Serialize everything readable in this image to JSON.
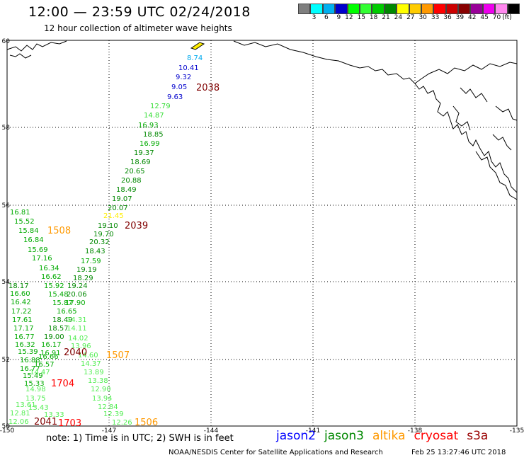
{
  "header": {
    "title": "12:00 — 23:59 UTC 02/24/2018",
    "subtitle": "12 hour collection of altimeter wave heights"
  },
  "legend": {
    "unit": "(ft)",
    "colors": [
      "#7f7f7f",
      "#00ffff",
      "#00b0f0",
      "#0000cd",
      "#00ffff00",
      "#33ff33",
      "#00cc00",
      "#008800",
      "#ffff00",
      "#ffcc00",
      "#ff9900",
      "#ff0000",
      "#cc0000",
      "#880000",
      "#990099",
      "#ee00ee",
      "#ff88ee",
      "#000000"
    ],
    "labels": [
      "3",
      "6",
      "9",
      "12",
      "15",
      "18",
      "21",
      "24",
      "27",
      "30",
      "33",
      "36",
      "39",
      "42",
      "45",
      "70"
    ]
  },
  "axes": {
    "lat_labels": [
      "60",
      "58",
      "56",
      "54",
      "52",
      "50"
    ],
    "lon_labels": [
      "-150",
      "-147",
      "-144",
      "-141",
      "-138",
      "-135"
    ]
  },
  "track_labels": [
    {
      "text": "2038",
      "color": "#800000"
    },
    {
      "text": "2039",
      "color": "#800000"
    },
    {
      "text": "2040",
      "color": "#800000"
    },
    {
      "text": "2041",
      "color": "#800000"
    },
    {
      "text": "1508",
      "color": "#ff9900"
    },
    {
      "text": "1507",
      "color": "#ff9900"
    },
    {
      "text": "1506",
      "color": "#ff9900"
    },
    {
      "text": "1704",
      "color": "#ff0000"
    },
    {
      "text": "1703",
      "color": "#ff0000"
    }
  ],
  "observations": [
    {
      "text": "8.74",
      "color": "#00aaee"
    },
    {
      "text": "10.41",
      "color": "#0000cc"
    },
    {
      "text": "9.32",
      "color": "#0000cc"
    },
    {
      "text": "9.05",
      "color": "#0000cc"
    },
    {
      "text": "9.63",
      "color": "#0000cc"
    },
    {
      "text": "12.79",
      "color": "#33dd33"
    },
    {
      "text": "14.87",
      "color": "#33dd33"
    },
    {
      "text": "16.93",
      "color": "#00aa00"
    },
    {
      "text": "18.85",
      "color": "#008800"
    },
    {
      "text": "16.99",
      "color": "#00aa00"
    },
    {
      "text": "19.37",
      "color": "#008800"
    },
    {
      "text": "18.69",
      "color": "#008800"
    },
    {
      "text": "20.65",
      "color": "#008800"
    },
    {
      "text": "20.88",
      "color": "#008800"
    },
    {
      "text": "18.49",
      "color": "#008800"
    },
    {
      "text": "19.07",
      "color": "#008800"
    },
    {
      "text": "20.07",
      "color": "#008800"
    },
    {
      "text": "21.45",
      "color": "#ffee00"
    },
    {
      "text": "19.10",
      "color": "#008800"
    },
    {
      "text": "19.70",
      "color": "#008800"
    },
    {
      "text": "20.32",
      "color": "#008800"
    },
    {
      "text": "18.43",
      "color": "#008800"
    },
    {
      "text": "17.59",
      "color": "#00aa00"
    },
    {
      "text": "19.19",
      "color": "#008800"
    },
    {
      "text": "18.29",
      "color": "#008800"
    },
    {
      "text": "16.81",
      "color": "#00aa00"
    },
    {
      "text": "15.52",
      "color": "#00aa00"
    },
    {
      "text": "15.84",
      "color": "#00aa00"
    },
    {
      "text": "16.84",
      "color": "#00aa00"
    },
    {
      "text": "15.69",
      "color": "#00aa00"
    },
    {
      "text": "17.16",
      "color": "#00aa00"
    },
    {
      "text": "16.34",
      "color": "#00aa00"
    },
    {
      "text": "16.62",
      "color": "#00aa00"
    },
    {
      "text": "15.92",
      "color": "#00aa00"
    },
    {
      "text": "19.24",
      "color": "#008800"
    },
    {
      "text": "18.17",
      "color": "#008800"
    },
    {
      "text": "16.60",
      "color": "#00aa00"
    },
    {
      "text": "15.48",
      "color": "#00aa00"
    },
    {
      "text": "20.06",
      "color": "#008800"
    },
    {
      "text": "16.42",
      "color": "#00aa00"
    },
    {
      "text": "15.87",
      "color": "#00aa00"
    },
    {
      "text": "17.90",
      "color": "#00aa00"
    },
    {
      "text": "17.22",
      "color": "#00aa00"
    },
    {
      "text": "16.65",
      "color": "#00aa00"
    },
    {
      "text": "17.61",
      "color": "#00aa00"
    },
    {
      "text": "18.49",
      "color": "#008800"
    },
    {
      "text": "14.31",
      "color": "#55ee55"
    },
    {
      "text": "17.17",
      "color": "#00aa00"
    },
    {
      "text": "18.57",
      "color": "#008800"
    },
    {
      "text": "14.11",
      "color": "#55ee55"
    },
    {
      "text": "16.77",
      "color": "#00aa00"
    },
    {
      "text": "19.00",
      "color": "#008800"
    },
    {
      "text": "14.02",
      "color": "#55ee55"
    },
    {
      "text": "16.32",
      "color": "#00aa00"
    },
    {
      "text": "16.17",
      "color": "#00aa00"
    },
    {
      "text": "13.96",
      "color": "#55ee55"
    },
    {
      "text": "15.39",
      "color": "#00aa00"
    },
    {
      "text": "16.91",
      "color": "#00aa00"
    },
    {
      "text": "14.60",
      "color": "#55ee55"
    },
    {
      "text": "16.88",
      "color": "#00aa00"
    },
    {
      "text": "16.66",
      "color": "#00aa00"
    },
    {
      "text": "14.37",
      "color": "#55ee55"
    },
    {
      "text": "16.77",
      "color": "#00aa00"
    },
    {
      "text": "16.57",
      "color": "#00aa00"
    },
    {
      "text": "13.89",
      "color": "#55ee55"
    },
    {
      "text": "14.47",
      "color": "#55ee55"
    },
    {
      "text": "15.49",
      "color": "#00aa00"
    },
    {
      "text": "13.38",
      "color": "#55ee55"
    },
    {
      "text": "15.33",
      "color": "#00aa00"
    },
    {
      "text": "12.90",
      "color": "#55ee55"
    },
    {
      "text": "14.98",
      "color": "#55ee55"
    },
    {
      "text": "13.94",
      "color": "#55ee55"
    },
    {
      "text": "13.75",
      "color": "#55ee55"
    },
    {
      "text": "13.61",
      "color": "#55ee55"
    },
    {
      "text": "13.43",
      "color": "#55ee55"
    },
    {
      "text": "12.84",
      "color": "#55ee55"
    },
    {
      "text": "12.81",
      "color": "#55ee55"
    },
    {
      "text": "13.33",
      "color": "#55ee55"
    },
    {
      "text": "12.39",
      "color": "#55ee55"
    },
    {
      "text": "12.06",
      "color": "#55ee55"
    },
    {
      "text": "12.26",
      "color": "#55ee55"
    }
  ],
  "footer": {
    "note": "note: 1) Time is in UTC; 2) SWH is in feet",
    "satellites": [
      {
        "name": "jason2",
        "color": "#0000ff"
      },
      {
        "name": "jason3",
        "color": "#008800"
      },
      {
        "name": "altika",
        "color": "#ff9900"
      },
      {
        "name": "cryosat",
        "color": "#ff0000"
      },
      {
        "name": "s3a",
        "color": "#990000"
      }
    ],
    "credit": "NOAA/NESDIS Center for Satellite Applications and Research",
    "timestamp": "Feb 25 13:27:46 UTC 2018"
  }
}
